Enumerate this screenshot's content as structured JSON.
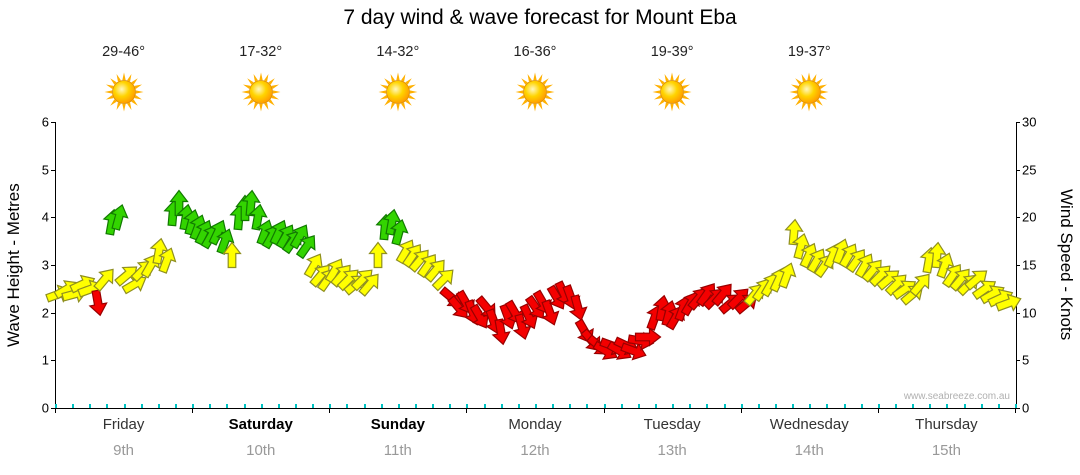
{
  "title": "7 day wind & wave forecast for Mount Eba",
  "header": {
    "icon": "sun-icon",
    "temps": [
      "29-46°",
      "17-32°",
      "14-32°",
      "16-36°",
      "19-39°",
      "19-37°"
    ]
  },
  "axes": {
    "left": {
      "label": "Wave Height - Metres",
      "ticks": [
        0,
        1,
        2,
        3,
        4,
        5,
        6
      ],
      "max": 6
    },
    "right": {
      "label": "Wind Speed - Knots",
      "ticks": [
        0,
        5,
        10,
        15,
        20,
        25,
        30
      ],
      "max": 30
    }
  },
  "days": [
    {
      "name": "Friday",
      "date": "9th",
      "bold": false
    },
    {
      "name": "Saturday",
      "date": "10th",
      "bold": true
    },
    {
      "name": "Sunday",
      "date": "11th",
      "bold": true
    },
    {
      "name": "Monday",
      "date": "12th",
      "bold": false
    },
    {
      "name": "Tuesday",
      "date": "13th",
      "bold": false
    },
    {
      "name": "Wednesday",
      "date": "14th",
      "bold": false
    },
    {
      "name": "Thursday",
      "date": "15th",
      "bold": false
    }
  ],
  "watermark": "www.seabreeze.com.au",
  "colors": {
    "arrow_green": "#33d400",
    "arrow_yellow": "#ffff00",
    "arrow_red": "#f40000",
    "outline_green": "#117a00",
    "outline_yellow": "#8f8f20",
    "outline_red": "#990000",
    "teal_tick": "#00c2c2",
    "sun_core": "#ffc400",
    "sun_edge": "#ff9000"
  },
  "chart_data": {
    "type": "scatter",
    "title": "7 day wind & wave forecast for Mount Eba",
    "x_categories": [
      "Friday 9th",
      "Saturday 10th",
      "Sunday 11th",
      "Monday 12th",
      "Tuesday 13th",
      "Wednesday 14th",
      "Thursday 15th"
    ],
    "y_left": {
      "label": "Wave Height - Metres",
      "range": [
        0,
        6
      ]
    },
    "y_right": {
      "label": "Wind Speed - Knots",
      "range": [
        0,
        30
      ]
    },
    "point_format": [
      "time_fraction_of_week",
      "wind_speed_knots",
      "arrow_rotation_deg_cw_from_up",
      "color"
    ],
    "points": [
      [
        0.003,
        12,
        70,
        "y"
      ],
      [
        0.011,
        12.5,
        60,
        "y"
      ],
      [
        0.02,
        12,
        75,
        "y"
      ],
      [
        0.028,
        13,
        65,
        "y"
      ],
      [
        0.036,
        12.5,
        70,
        "y"
      ],
      [
        0.044,
        11,
        170,
        "r"
      ],
      [
        0.051,
        13.5,
        40,
        "y"
      ],
      [
        0.058,
        19.5,
        10,
        "g"
      ],
      [
        0.066,
        20,
        15,
        "g"
      ],
      [
        0.074,
        14,
        50,
        "y"
      ],
      [
        0.082,
        13,
        60,
        "y"
      ],
      [
        0.091,
        14.5,
        45,
        "y"
      ],
      [
        0.099,
        15,
        30,
        "y"
      ],
      [
        0.107,
        16.5,
        10,
        "y"
      ],
      [
        0.116,
        15.5,
        20,
        "y"
      ],
      [
        0.122,
        20.5,
        5,
        "g"
      ],
      [
        0.128,
        21.5,
        0,
        "g"
      ],
      [
        0.135,
        20,
        10,
        "g"
      ],
      [
        0.142,
        19.5,
        15,
        "g"
      ],
      [
        0.148,
        19,
        20,
        "g"
      ],
      [
        0.154,
        18.5,
        25,
        "g"
      ],
      [
        0.161,
        18,
        30,
        "g"
      ],
      [
        0.169,
        18.5,
        25,
        "g"
      ],
      [
        0.176,
        17.5,
        20,
        "g"
      ],
      [
        0.183,
        16,
        0,
        "y"
      ],
      [
        0.191,
        20,
        5,
        "g"
      ],
      [
        0.197,
        21,
        0,
        "g"
      ],
      [
        0.203,
        21.5,
        5,
        "g"
      ],
      [
        0.21,
        20,
        10,
        "g"
      ],
      [
        0.218,
        18.5,
        20,
        "g"
      ],
      [
        0.225,
        18,
        30,
        "g"
      ],
      [
        0.232,
        18.5,
        25,
        "g"
      ],
      [
        0.24,
        18,
        30,
        "g"
      ],
      [
        0.247,
        17.5,
        35,
        "g"
      ],
      [
        0.254,
        18,
        30,
        "g"
      ],
      [
        0.261,
        17,
        35,
        "g"
      ],
      [
        0.269,
        15,
        30,
        "y"
      ],
      [
        0.276,
        14,
        40,
        "y"
      ],
      [
        0.283,
        13.5,
        35,
        "y"
      ],
      [
        0.291,
        14.5,
        30,
        "y"
      ],
      [
        0.298,
        14,
        40,
        "y"
      ],
      [
        0.305,
        13.5,
        45,
        "y"
      ],
      [
        0.313,
        13,
        50,
        "y"
      ],
      [
        0.32,
        13.5,
        45,
        "y"
      ],
      [
        0.327,
        13,
        40,
        "y"
      ],
      [
        0.335,
        16,
        0,
        "y"
      ],
      [
        0.343,
        19,
        5,
        "g"
      ],
      [
        0.35,
        19.5,
        10,
        "g"
      ],
      [
        0.357,
        18.5,
        15,
        "g"
      ],
      [
        0.365,
        16.5,
        30,
        "y"
      ],
      [
        0.372,
        16,
        35,
        "y"
      ],
      [
        0.379,
        15.5,
        40,
        "y"
      ],
      [
        0.388,
        15,
        35,
        "y"
      ],
      [
        0.396,
        14.5,
        40,
        "y"
      ],
      [
        0.404,
        13.5,
        45,
        "y"
      ],
      [
        0.413,
        11.5,
        130,
        "r"
      ],
      [
        0.42,
        10.5,
        140,
        "r"
      ],
      [
        0.427,
        11,
        150,
        "r"
      ],
      [
        0.434,
        10,
        160,
        "r"
      ],
      [
        0.442,
        9.5,
        150,
        "r"
      ],
      [
        0.449,
        10.5,
        140,
        "r"
      ],
      [
        0.456,
        9,
        160,
        "r"
      ],
      [
        0.464,
        8,
        170,
        "r"
      ],
      [
        0.471,
        9.5,
        160,
        "r"
      ],
      [
        0.478,
        10,
        150,
        "r"
      ],
      [
        0.485,
        8.5,
        165,
        "r"
      ],
      [
        0.493,
        9.5,
        155,
        "r"
      ],
      [
        0.5,
        10.5,
        145,
        "r"
      ],
      [
        0.507,
        11,
        150,
        "r"
      ],
      [
        0.515,
        10,
        160,
        "r"
      ],
      [
        0.522,
        11.5,
        150,
        "r"
      ],
      [
        0.529,
        12,
        155,
        "r"
      ],
      [
        0.536,
        11.5,
        160,
        "r"
      ],
      [
        0.544,
        10.5,
        165,
        "r"
      ],
      [
        0.551,
        8,
        150,
        "r"
      ],
      [
        0.558,
        7,
        140,
        "r"
      ],
      [
        0.566,
        6.5,
        130,
        "r"
      ],
      [
        0.573,
        6,
        120,
        "r"
      ],
      [
        0.58,
        6.5,
        110,
        "r"
      ],
      [
        0.588,
        6,
        120,
        "r"
      ],
      [
        0.595,
        6.5,
        115,
        "r"
      ],
      [
        0.602,
        6,
        110,
        "r"
      ],
      [
        0.609,
        7,
        100,
        "r"
      ],
      [
        0.617,
        7.5,
        90,
        "r"
      ],
      [
        0.624,
        9.5,
        20,
        "r"
      ],
      [
        0.631,
        10.5,
        10,
        "r"
      ],
      [
        0.639,
        10,
        15,
        "r"
      ],
      [
        0.646,
        9.5,
        30,
        "r"
      ],
      [
        0.653,
        10.5,
        20,
        "r"
      ],
      [
        0.661,
        11,
        30,
        "r"
      ],
      [
        0.67,
        11.5,
        40,
        "r"
      ],
      [
        0.678,
        12,
        35,
        "r"
      ],
      [
        0.686,
        11.5,
        45,
        "r"
      ],
      [
        0.695,
        12,
        40,
        "r"
      ],
      [
        0.703,
        11,
        50,
        "r"
      ],
      [
        0.711,
        11.5,
        45,
        "r"
      ],
      [
        0.72,
        11,
        50,
        "r"
      ],
      [
        0.728,
        12,
        40,
        "y"
      ],
      [
        0.736,
        12.5,
        35,
        "y"
      ],
      [
        0.745,
        13,
        30,
        "y"
      ],
      [
        0.753,
        13.5,
        25,
        "y"
      ],
      [
        0.761,
        14,
        20,
        "y"
      ],
      [
        0.769,
        18.5,
        5,
        "y"
      ],
      [
        0.776,
        17,
        15,
        "y"
      ],
      [
        0.784,
        16,
        25,
        "y"
      ],
      [
        0.793,
        15.5,
        30,
        "y"
      ],
      [
        0.801,
        15,
        35,
        "y"
      ],
      [
        0.809,
        16,
        25,
        "y"
      ],
      [
        0.818,
        16.5,
        20,
        "y"
      ],
      [
        0.826,
        16,
        30,
        "y"
      ],
      [
        0.834,
        15.5,
        35,
        "y"
      ],
      [
        0.843,
        15,
        30,
        "y"
      ],
      [
        0.851,
        14.5,
        40,
        "y"
      ],
      [
        0.859,
        14,
        45,
        "y"
      ],
      [
        0.868,
        13.5,
        50,
        "y"
      ],
      [
        0.876,
        13,
        45,
        "y"
      ],
      [
        0.884,
        12.5,
        55,
        "y"
      ],
      [
        0.893,
        12,
        50,
        "y"
      ],
      [
        0.901,
        13,
        40,
        "y"
      ],
      [
        0.909,
        15.5,
        10,
        "y"
      ],
      [
        0.918,
        16,
        5,
        "y"
      ],
      [
        0.926,
        15,
        20,
        "y"
      ],
      [
        0.934,
        14,
        35,
        "y"
      ],
      [
        0.943,
        13.5,
        40,
        "y"
      ],
      [
        0.951,
        13,
        45,
        "y"
      ],
      [
        0.959,
        13.5,
        50,
        "y"
      ],
      [
        0.968,
        12.5,
        55,
        "y"
      ],
      [
        0.976,
        12,
        60,
        "y"
      ],
      [
        0.984,
        11.5,
        65,
        "y"
      ],
      [
        0.993,
        11,
        70,
        "y"
      ]
    ]
  }
}
